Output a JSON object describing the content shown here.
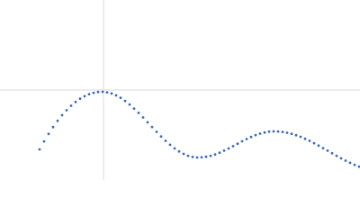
{
  "chart_data": {
    "type": "scatter",
    "x": [
      -71,
      -66,
      -61,
      -56,
      -51,
      -46,
      -41,
      -36,
      -31,
      -26,
      -21,
      -16,
      -11,
      -6,
      -1,
      4,
      9,
      14,
      19,
      24,
      29,
      34,
      39,
      44,
      49,
      54,
      59,
      64,
      69,
      74,
      79,
      84,
      89,
      94,
      99,
      104,
      109,
      114,
      119,
      124,
      129,
      134,
      139,
      144,
      149,
      154,
      159,
      164,
      169,
      174,
      179,
      184,
      189,
      194,
      199,
      204,
      209,
      214,
      219,
      224,
      229,
      234,
      239,
      244,
      249,
      254,
      259,
      264,
      269,
      274,
      279,
      284
    ],
    "values": [
      -66,
      -57.1,
      -48.8,
      -41.2,
      -34.3,
      -28,
      -22.5,
      -17.5,
      -13.3,
      -9.7,
      -6.9,
      -4.6,
      -3.1,
      -2.2,
      -2,
      -2.6,
      -3.9,
      -6,
      -8.7,
      -12.1,
      -16.1,
      -20.6,
      -25.4,
      -30.5,
      -35.9,
      -41.1,
      -46.5,
      -51.6,
      -56.5,
      -60.9,
      -64.9,
      -68.3,
      -71,
      -73.1,
      -74.4,
      -75,
      -74.8,
      -74.2,
      -73.1,
      -71.6,
      -69.7,
      -67.4,
      -65,
      -62.4,
      -59.7,
      -57,
      -54.5,
      -52.2,
      -50.1,
      -48.5,
      -47.2,
      -46.3,
      -46,
      -46.1,
      -46.6,
      -47.5,
      -48.7,
      -50.2,
      -52,
      -54.2,
      -56.5,
      -59.1,
      -61.8,
      -64.6,
      -67.4,
      -70.3,
      -73.1,
      -75.9,
      -78.5,
      -80.9,
      -83.1,
      -85.1
    ],
    "color": "#3b6bb8",
    "xlim": [
      -115,
      285
    ],
    "ylim": [
      -100,
      100
    ],
    "xticks": [
      0
    ],
    "yticks": [
      0
    ],
    "grid": true,
    "tick_labels": false
  }
}
